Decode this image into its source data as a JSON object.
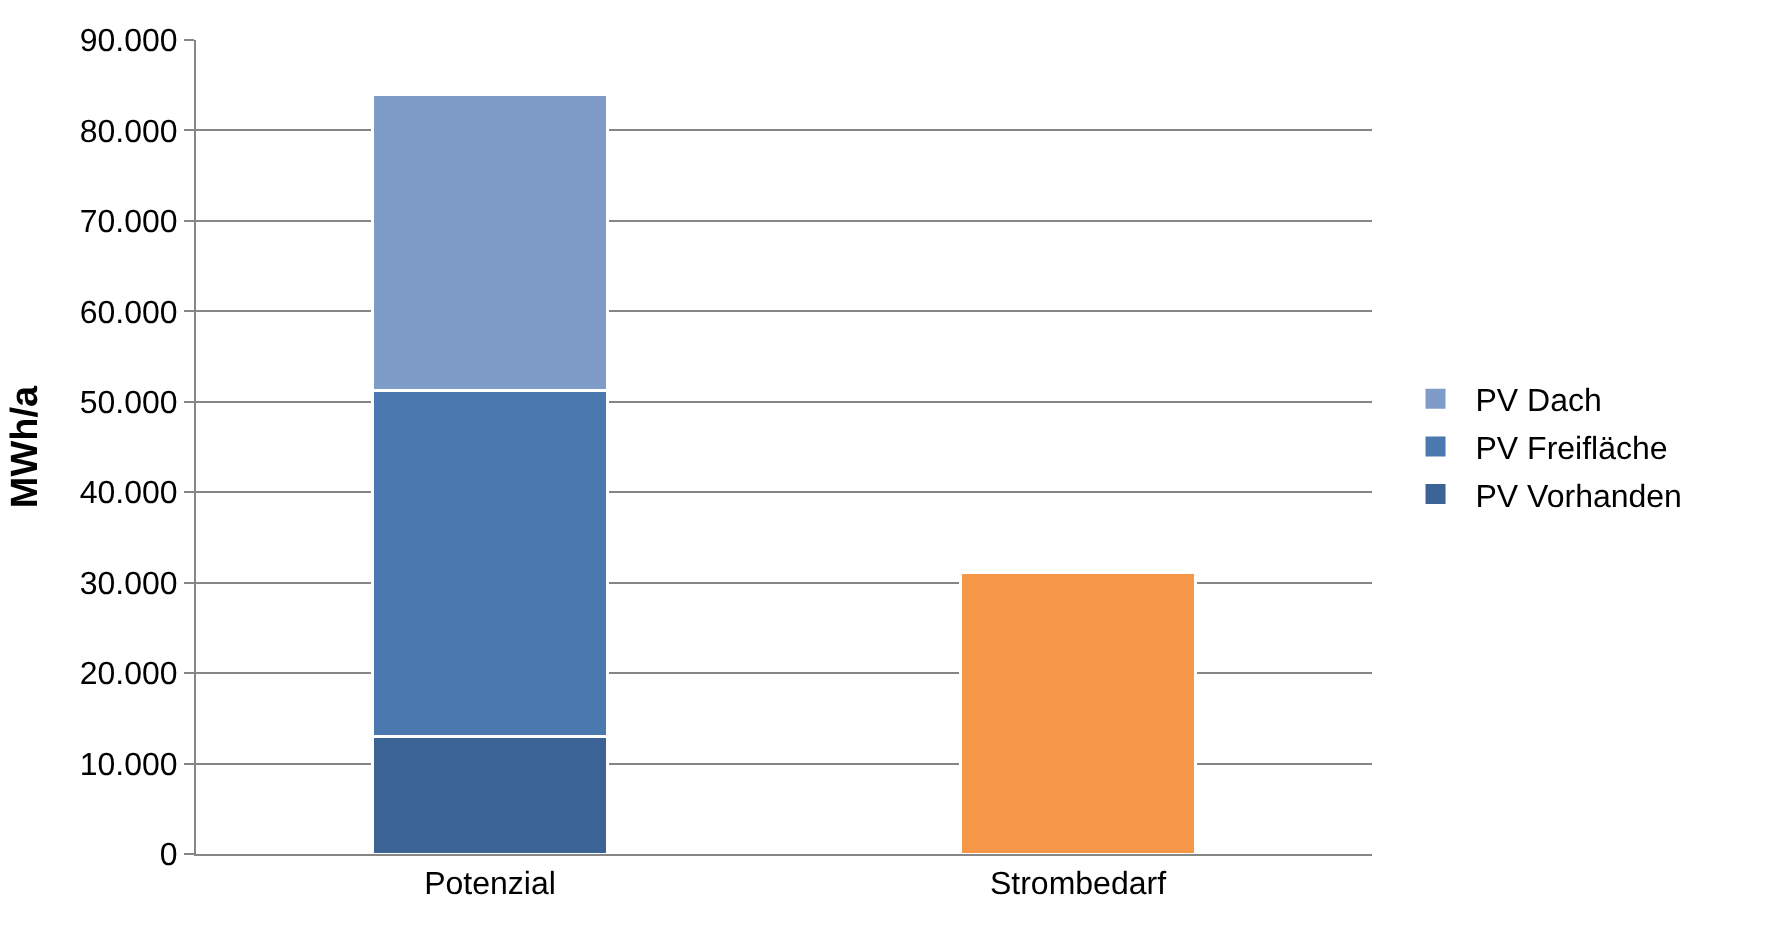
{
  "chart_data": {
    "type": "bar",
    "stacked": true,
    "ylabel": "MWh/a",
    "categories": [
      "Potenzial",
      "Strombedarf"
    ],
    "series": [
      {
        "name": "PV Vorhanden",
        "color": "#3b6395",
        "values": [
          13000,
          null
        ]
      },
      {
        "name": "PV Freifläche",
        "color": "#4a78af",
        "values": [
          38200,
          null
        ]
      },
      {
        "name": "PV Dach",
        "color": "#7f9cc8",
        "values": [
          32800,
          null
        ]
      },
      {
        "color": "#f59746",
        "values": [
          null,
          31100
        ]
      }
    ],
    "ylim": [
      0,
      90000
    ],
    "yticks": [
      0,
      {
        "value": 10000,
        "label": "10.000"
      },
      {
        "value": 20000,
        "label": "20.000"
      },
      {
        "value": 30000,
        "label": "30.000"
      },
      {
        "value": 40000,
        "label": "40.000"
      },
      {
        "value": 50000,
        "label": "50.000"
      },
      {
        "value": 60000,
        "label": "60.000"
      },
      {
        "value": 70000,
        "label": "70.000"
      },
      {
        "value": 80000,
        "label": "80.000"
      },
      {
        "value": 90000,
        "label": "90.000"
      }
    ],
    "grid": "y",
    "legend": "right"
  }
}
